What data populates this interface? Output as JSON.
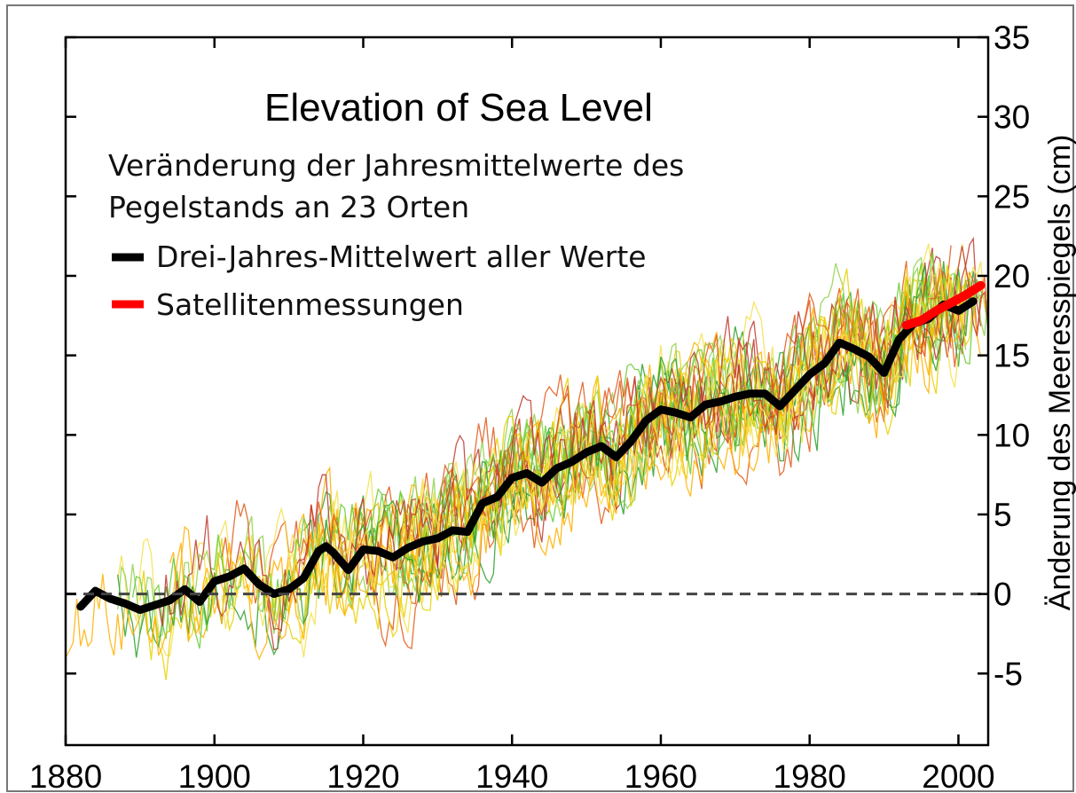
{
  "chart_data": {
    "type": "line",
    "title": "Elevation of Sea Level",
    "ylabel": "Änderung des Meeresspiegels (cm)",
    "xlabel": "",
    "xlim": [
      1880,
      2004
    ],
    "ylim": [
      -9.5,
      35
    ],
    "x_ticks": [
      "1880",
      "1900",
      "1920",
      "1940",
      "1960",
      "1980",
      "2000"
    ],
    "y_ticks": [
      "-5",
      "0",
      "5",
      "10",
      "15",
      "20",
      "25",
      "30",
      "35"
    ],
    "y_axis_position": "right",
    "reference_line": {
      "y": 0,
      "style": "dashed"
    },
    "legend": {
      "placement": "top-left",
      "heading": [
        "Veränderung der Jahresmittelwerte des",
        "Pegelstands an 23 Orten"
      ],
      "entries": [
        {
          "label": "Drei-Jahres-Mittelwert aller Werte",
          "color": "#000000"
        },
        {
          "label": "Satellitenmessungen",
          "color": "#ff0000"
        }
      ]
    },
    "gauge_series_count": 23,
    "gauge_colors": [
      "#2ca02c",
      "#8fd14f",
      "#e8d100",
      "#ffb000",
      "#e05a1a",
      "#c0392b",
      "#f4e04d",
      "#66cc33"
    ],
    "series": [
      {
        "name": "Drei-Jahres-Mittelwert aller Werte",
        "color": "#000000",
        "x": [
          1882,
          1884,
          1886,
          1888,
          1890,
          1892,
          1894,
          1896,
          1898,
          1900,
          1902,
          1904,
          1906,
          1908,
          1910,
          1912,
          1914,
          1915,
          1916,
          1918,
          1920,
          1922,
          1924,
          1926,
          1928,
          1930,
          1932,
          1934,
          1936,
          1938,
          1940,
          1942,
          1944,
          1946,
          1948,
          1950,
          1952,
          1954,
          1956,
          1958,
          1960,
          1962,
          1964,
          1966,
          1968,
          1970,
          1972,
          1974,
          1976,
          1978,
          1980,
          1982,
          1984,
          1986,
          1988,
          1990,
          1992,
          1994,
          1996,
          1998,
          2000,
          2002
        ],
        "values": [
          -0.8,
          0.2,
          -0.3,
          -0.6,
          -1.0,
          -0.7,
          -0.4,
          0.3,
          -0.5,
          0.8,
          1.1,
          1.6,
          0.6,
          0.0,
          0.3,
          1.0,
          2.7,
          3.0,
          2.6,
          1.5,
          2.8,
          2.7,
          2.3,
          2.9,
          3.3,
          3.5,
          4.0,
          3.9,
          5.7,
          6.1,
          7.3,
          7.6,
          7.0,
          7.9,
          8.3,
          8.9,
          9.3,
          8.6,
          9.6,
          10.9,
          11.6,
          11.4,
          11.1,
          11.9,
          12.1,
          12.4,
          12.6,
          12.6,
          11.8,
          12.8,
          13.8,
          14.5,
          15.8,
          15.4,
          14.9,
          13.9,
          16.0,
          17.0,
          17.3,
          18.2,
          17.8,
          18.4
        ]
      },
      {
        "name": "Satellitenmessungen",
        "color": "#ff0000",
        "x": [
          1993,
          1995,
          1997,
          1999,
          2001,
          2003
        ],
        "values": [
          16.9,
          17.2,
          17.8,
          18.3,
          18.8,
          19.4
        ]
      }
    ]
  }
}
